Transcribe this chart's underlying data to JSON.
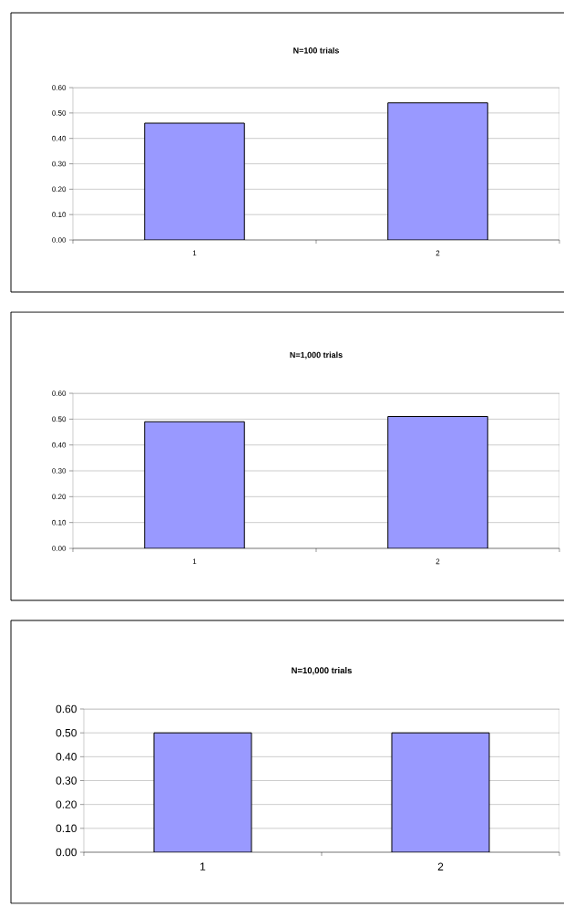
{
  "chart_data": [
    {
      "type": "bar",
      "title": "N=100 trials",
      "categories": [
        "1",
        "2"
      ],
      "values": [
        0.46,
        0.54
      ],
      "color": "#9999ff",
      "ylim": [
        0,
        0.6
      ],
      "yticks": [
        {
          "value": 0,
          "label": "0.00"
        },
        {
          "value": 0.1,
          "label": "0.10"
        },
        {
          "value": 0.2,
          "label": "0.20"
        },
        {
          "value": 0.3,
          "label": "0.30"
        },
        {
          "value": 0.4,
          "label": "0.40"
        },
        {
          "value": 0.5,
          "label": "0.50"
        },
        {
          "value": 0.6,
          "label": "0.60"
        }
      ],
      "grid": "y"
    },
    {
      "type": "bar",
      "title": "N=1,000 trials",
      "categories": [
        "1",
        "2"
      ],
      "values": [
        0.49,
        0.51
      ],
      "color": "#9999ff",
      "ylim": [
        0,
        0.6
      ],
      "yticks": [
        {
          "value": 0,
          "label": "0.00"
        },
        {
          "value": 0.1,
          "label": "0.10"
        },
        {
          "value": 0.2,
          "label": "0.20"
        },
        {
          "value": 0.3,
          "label": "0.30"
        },
        {
          "value": 0.4,
          "label": "0.40"
        },
        {
          "value": 0.5,
          "label": "0.50"
        },
        {
          "value": 0.6,
          "label": "0.60"
        }
      ],
      "grid": "y"
    },
    {
      "type": "bar",
      "title": "N=10,000 trials",
      "categories": [
        "1",
        "2"
      ],
      "values": [
        0.5,
        0.5
      ],
      "color": "#9999ff",
      "ylim": [
        0,
        0.6
      ],
      "yticks": [
        {
          "value": 0,
          "label": "0.00"
        },
        {
          "value": 0.1,
          "label": "0.10"
        },
        {
          "value": 0.2,
          "label": "0.20"
        },
        {
          "value": 0.3,
          "label": "0.30"
        },
        {
          "value": 0.4,
          "label": "0.40"
        },
        {
          "value": 0.5,
          "label": "0.50"
        },
        {
          "value": 0.6,
          "label": "0.60"
        }
      ],
      "grid": "y"
    }
  ]
}
